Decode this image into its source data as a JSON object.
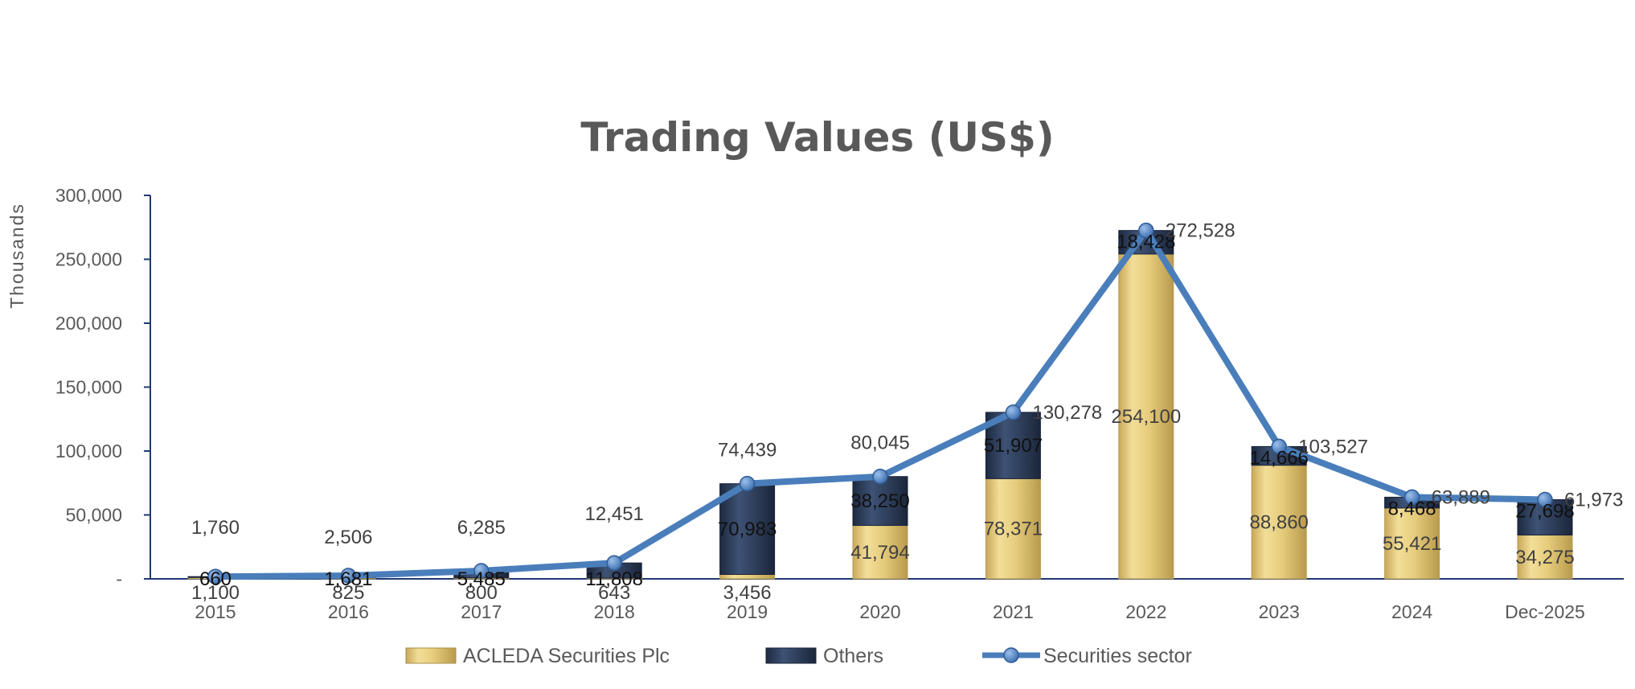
{
  "chart_data": {
    "type": "bar",
    "title": "Trading Values (US$)",
    "ylabel": "Thousands",
    "xlabel": "",
    "ylim": [
      0,
      300000
    ],
    "yticks": [
      0,
      50000,
      100000,
      150000,
      200000,
      250000,
      300000
    ],
    "ytick_labels": [
      "-",
      "50,000",
      "100,000",
      "150,000",
      "200,000",
      "250,000",
      "300,000"
    ],
    "grid": false,
    "legend_position": "bottom",
    "categories": [
      "2015",
      "2016",
      "2017",
      "2018",
      "2019",
      "2020",
      "2021",
      "2022",
      "2023",
      "2024",
      "Dec-2025"
    ],
    "series": [
      {
        "name": "ACLEDA Securities Plc",
        "kind": "stacked-bar",
        "color": "#E8CF7A",
        "values": [
          1100,
          825,
          800,
          643,
          3456,
          41794,
          78371,
          254100,
          88860,
          55421,
          34275
        ],
        "labels": [
          "1,100",
          "825",
          "800",
          "643",
          "3,456",
          "41,794",
          "78,371",
          "254,100",
          "88,860",
          "55,421",
          "34,275"
        ]
      },
      {
        "name": "Others",
        "kind": "stacked-bar",
        "color": "#2E3F5E",
        "values": [
          660,
          1681,
          5485,
          11808,
          70983,
          38250,
          51907,
          18428,
          14666,
          8468,
          27698
        ],
        "labels": [
          "660",
          "1,681",
          "5,485",
          "11,808",
          "70,983",
          "38,250",
          "51,907",
          "18,428",
          "14,666",
          "8,468",
          "27,698"
        ]
      },
      {
        "name": "Securities sector",
        "kind": "line",
        "color": "#4A7EBB",
        "values": [
          1760,
          2506,
          6285,
          12451,
          74439,
          80045,
          130278,
          272528,
          103527,
          63889,
          61973
        ],
        "labels": [
          "1,760",
          "2,506",
          "6,285",
          "12,451",
          "74,439",
          "80,045",
          "130,278",
          "272,528",
          "103,527",
          "63,889",
          "61,973"
        ]
      }
    ]
  }
}
